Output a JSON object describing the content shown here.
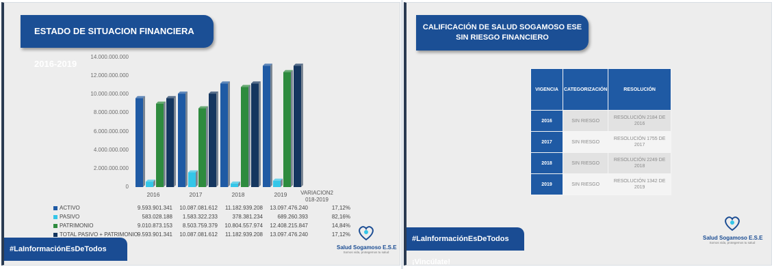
{
  "left": {
    "title": "ESTADO DE SITUACION FINANCIERA 2016-2019",
    "variation_header": "VARIACION2 018-2019",
    "hashtag": "#LaInformaciónEsDeTodos ¡Vincúlate!",
    "logo": {
      "name": "Salud Sogamoso E.S.E",
      "tagline": "Somos vida, protegemos tu salud"
    },
    "legend_rows": [
      {
        "name": "ACTIVO",
        "color": "#1f5aa4",
        "values": [
          "9.593.901.341",
          "10.087.081.612",
          "11.182.939.208",
          "13.097.476.240"
        ],
        "variation": "17,12%"
      },
      {
        "name": "PASIVO",
        "color": "#34c6e8",
        "values": [
          "583.028.188",
          "1.583.322.233",
          "378.381.234",
          "689.260.393"
        ],
        "variation": "82,16%"
      },
      {
        "name": "PATRIMONIO",
        "color": "#2e8b3e",
        "values": [
          "9.010.873.153",
          "8.503.759.379",
          "10.804.557.974",
          "12.408.215.847"
        ],
        "variation": "14,84%"
      },
      {
        "name": "TOTAL PASIVO + PATRIMONIO",
        "color": "#15365f",
        "values": [
          "9.593.901.341",
          "10.087.081.612",
          "11.182.939.208",
          "13.097.476.240"
        ],
        "variation": "17,12%"
      }
    ]
  },
  "chart_data": {
    "type": "bar",
    "categories": [
      "2016",
      "2017",
      "2018",
      "2019"
    ],
    "series": [
      {
        "name": "ACTIVO",
        "values": [
          9593901341,
          10087081612,
          11182939208,
          13097476240
        ],
        "color": "#1f5aa4"
      },
      {
        "name": "PASIVO",
        "values": [
          583028188,
          1583322233,
          378381234,
          689260393
        ],
        "color": "#34c6e8"
      },
      {
        "name": "PATRIMONIO",
        "values": [
          9010873153,
          8503759379,
          10804557974,
          12408215847
        ],
        "color": "#2e8b3e"
      },
      {
        "name": "TOTAL PASIVO + PATRIMONIO",
        "values": [
          9593901341,
          10087081612,
          11182939208,
          13097476240
        ],
        "color": "#15365f"
      }
    ],
    "ylim": [
      0,
      14000000000
    ],
    "yticks": [
      "0",
      "2.000.000.000",
      "4.000.000.000",
      "6.000.000.000",
      "8.000.000.000",
      "10.000.000.000",
      "12.000.000.000",
      "14.000.000.000"
    ],
    "legend": "table-below",
    "grid": false
  },
  "right": {
    "title": "CALIFICACIÓN DE SALUD SOGAMOSO ESE SIN RIESGO FINANCIERO",
    "hashtag": "#LaInformaciónEsDeTodos ¡Vincúlate!",
    "logo": {
      "name": "Salud Sogamoso E.S.E",
      "tagline": "Somos vida, protegemos tu salud"
    },
    "table": {
      "headers": [
        "VIGENCIA",
        "CATEGORIZACIÓN",
        "RESOLUCIÓN"
      ],
      "rows": [
        {
          "year": "2016",
          "cat": "SIN RIESGO",
          "res": "RESOLUCIÓN 2184 DE 2016"
        },
        {
          "year": "2017",
          "cat": "SIN RIESGO",
          "res": "RESOLUCIÓN 1755 DE 2017"
        },
        {
          "year": "2018",
          "cat": "SIN RIESGO",
          "res": "RESOLUCIÓN 2249 DE 2018"
        },
        {
          "year": "2019",
          "cat": "SIN RIESGO",
          "res": "RESOLUCIÓN 1342 DE 2019"
        }
      ]
    }
  }
}
